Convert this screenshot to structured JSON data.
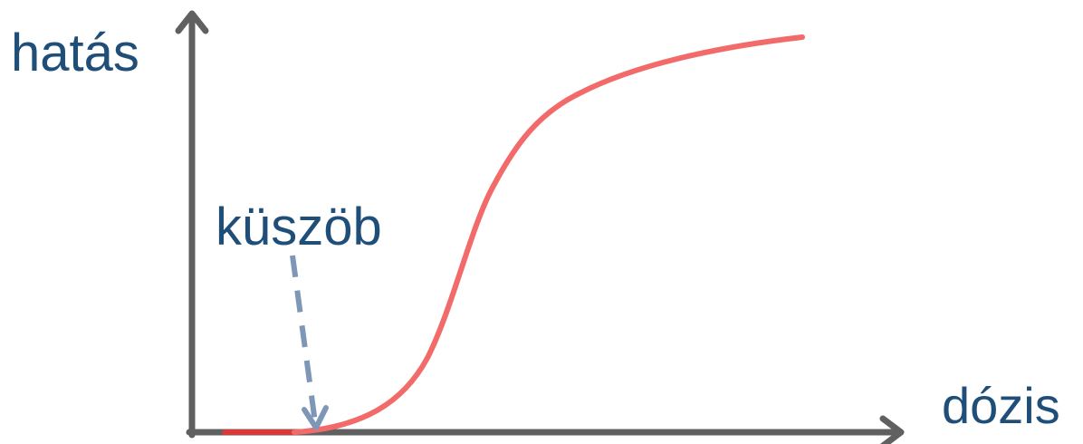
{
  "diagram": {
    "y_axis_label": "hatás",
    "x_axis_label": "dózis",
    "threshold_label": "küszöb"
  },
  "colors": {
    "axis": "#606060",
    "curve": "#f26a6a",
    "curve_baseline": "#d83a3a",
    "threshold_arrow": "#7f97b7",
    "text": "#1f4e79"
  }
}
